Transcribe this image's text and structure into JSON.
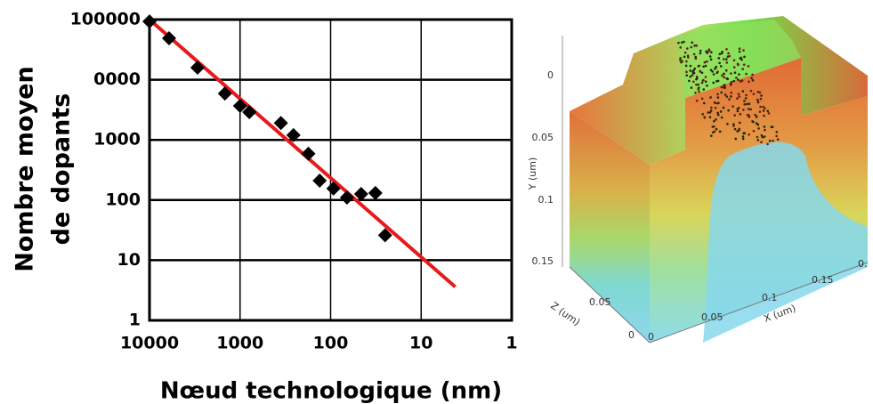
{
  "chart_data": {
    "type": "scatter",
    "ylabel": [
      "Nombre moyen",
      "de dopants"
    ],
    "xlabel": "Nœud technologique (nm)",
    "log_x": true,
    "log_y": true,
    "grid": true,
    "color": "#000000",
    "xlim": [
      10000,
      1
    ],
    "xticks": [
      10000,
      1000,
      100,
      10,
      1
    ],
    "ylim": [
      1,
      100000
    ],
    "yticks": [
      1,
      10,
      100,
      1000,
      {
        "value": 10000,
        "label": "0000"
      },
      100000
    ],
    "x": [
      10000,
      6080,
      2950,
      1470,
      1000,
      790,
      354,
      257,
      176,
      132,
      93,
      66,
      46,
      32,
      25
    ],
    "values": [
      93000,
      49000,
      15900,
      5900,
      3670,
      2890,
      1910,
      1200,
      590,
      210,
      155,
      110,
      126,
      131,
      26
    ],
    "fit_line": {
      "color": "#e8191b",
      "x": [
        10000,
        4.2
      ],
      "values": [
        100000,
        3.6
      ]
    }
  },
  "figure_3d": {
    "y_axis": {
      "label": "Y (um)",
      "ticks": [
        "0",
        "0.05",
        "0.1",
        "0.15"
      ]
    },
    "z_axis": {
      "label": "Z (um)",
      "ticks": [
        "0.05",
        "0"
      ]
    },
    "x_axis": {
      "label": "X (um)",
      "ticks": [
        "0",
        "0.05",
        "0.1",
        "0.15",
        "0."
      ]
    }
  }
}
